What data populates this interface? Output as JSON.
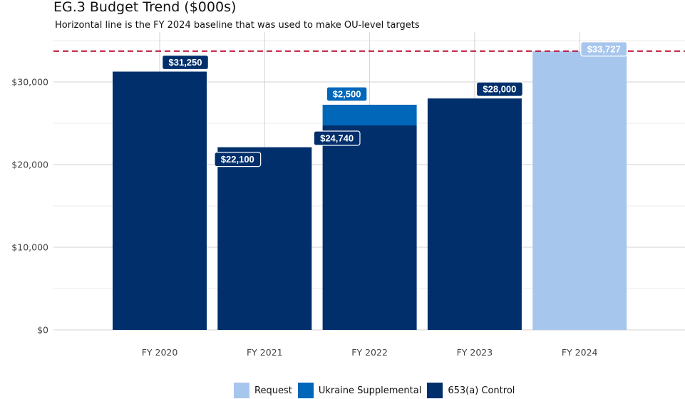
{
  "chart_data": {
    "type": "bar",
    "title": "EG.3 Budget Trend ($000s)",
    "subtitle": "Horizontal line is the FY 2024 baseline that was used to make OU-level targets",
    "categories": [
      "FY 2020",
      "FY 2021",
      "FY 2022",
      "FY 2023",
      "FY 2024"
    ],
    "stacked": true,
    "series": [
      {
        "name": "653(a) Control",
        "color": "#002F6C",
        "values": [
          31250,
          22100,
          24740,
          28000,
          0
        ]
      },
      {
        "name": "Ukraine Supplemental",
        "color": "#0067B9",
        "values": [
          0,
          0,
          2500,
          0,
          0
        ]
      },
      {
        "name": "Request",
        "color": "#A7C6ED",
        "values": [
          0,
          0,
          0,
          0,
          33727
        ]
      }
    ],
    "data_labels": [
      {
        "category": "FY 2020",
        "series": "653(a) Control",
        "value": 31250,
        "text": "$31,250"
      },
      {
        "category": "FY 2021",
        "series": "653(a) Control",
        "value": 22100,
        "text": "$22,100"
      },
      {
        "category": "FY 2022",
        "series": "653(a) Control",
        "value": 24740,
        "text": "$24,740"
      },
      {
        "category": "FY 2022",
        "series": "Ukraine Supplemental",
        "value": 2500,
        "text": "$2,500"
      },
      {
        "category": "FY 2023",
        "series": "653(a) Control",
        "value": 28000,
        "text": "$28,000"
      },
      {
        "category": "FY 2024",
        "series": "Request",
        "value": 33727,
        "text": "$33,727"
      }
    ],
    "reference_line": {
      "value": 33727,
      "color": "#BA0C2F",
      "style": "dashed"
    },
    "y_ticks": [
      0,
      10000,
      20000,
      30000
    ],
    "y_tick_labels": [
      "$0",
      "$10,000",
      "$20,000",
      "$30,000"
    ],
    "ylim": [
      0,
      36000
    ],
    "xlabel": "",
    "ylabel": "",
    "grid": true,
    "legend_position": "bottom",
    "legend": [
      {
        "label": "Request",
        "color": "#A7C6ED"
      },
      {
        "label": "Ukraine Supplemental",
        "color": "#0067B9"
      },
      {
        "label": "653(a) Control",
        "color": "#002F6C"
      }
    ]
  }
}
